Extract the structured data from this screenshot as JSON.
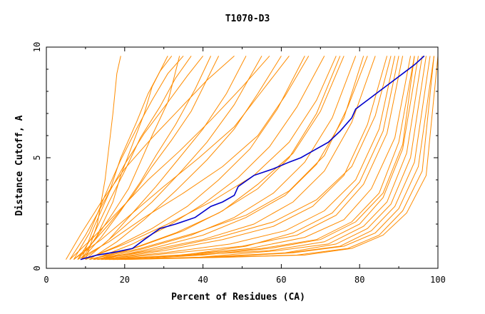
{
  "chart_data": {
    "type": "line",
    "title": "T1070-D3",
    "xlabel": "Percent of Residues (CA)",
    "ylabel": "Distance Cutoff, A",
    "xlim": [
      0,
      100
    ],
    "ylim": [
      0,
      10
    ],
    "x_ticks": [
      0,
      20,
      40,
      60,
      80,
      100
    ],
    "y_ticks": [
      0,
      5,
      10
    ],
    "grid": false,
    "legend": "none",
    "colors": {
      "highlight": "#0000cc",
      "background_models": "#ff8c00",
      "axes": "#000000"
    },
    "highlight_series": {
      "x": [
        8.7,
        13,
        18,
        22,
        25,
        29,
        33,
        38,
        42,
        45,
        48,
        49,
        53,
        58,
        62,
        65,
        68,
        72,
        75,
        78,
        79,
        82,
        85,
        88,
        91,
        94,
        96.5
      ],
      "y": [
        0.4,
        0.6,
        0.75,
        0.9,
        1.3,
        1.8,
        2.0,
        2.3,
        2.8,
        3.0,
        3.3,
        3.7,
        4.2,
        4.5,
        4.8,
        5.0,
        5.3,
        5.7,
        6.2,
        6.8,
        7.2,
        7.6,
        8.0,
        8.4,
        8.8,
        9.2,
        9.6
      ]
    },
    "model_series": [
      {
        "x": [
          10,
          13,
          15,
          16,
          17,
          18,
          19
        ],
        "y": [
          0.4,
          2.0,
          4.0,
          5.5,
          7.0,
          8.8,
          9.6
        ]
      },
      {
        "x": [
          9,
          13,
          17,
          19,
          22,
          25,
          27,
          31
        ],
        "y": [
          0.4,
          1.5,
          3.0,
          4.2,
          5.6,
          7.0,
          8.2,
          9.6
        ]
      },
      {
        "x": [
          8,
          12,
          17,
          21,
          24,
          27,
          31,
          34
        ],
        "y": [
          0.4,
          1.2,
          2.5,
          3.6,
          4.8,
          6.0,
          7.5,
          9.6
        ]
      },
      {
        "x": [
          9,
          14,
          19,
          24,
          28,
          33,
          38,
          42
        ],
        "y": [
          0.4,
          1.4,
          2.6,
          3.9,
          5.1,
          6.5,
          8.1,
          9.6
        ]
      },
      {
        "x": [
          7,
          11,
          16,
          22,
          27,
          32,
          37,
          44
        ],
        "y": [
          0.4,
          1.0,
          2.0,
          3.3,
          4.6,
          5.8,
          7.1,
          9.6
        ]
      },
      {
        "x": [
          10,
          16,
          22,
          28,
          34,
          40,
          46,
          51
        ],
        "y": [
          0.4,
          1.3,
          2.5,
          3.7,
          5.0,
          6.3,
          7.9,
          9.6
        ]
      },
      {
        "x": [
          9,
          14,
          20,
          27,
          34,
          41,
          48,
          55
        ],
        "y": [
          0.4,
          1.0,
          1.9,
          3.0,
          4.3,
          5.7,
          7.4,
          9.6
        ]
      },
      {
        "x": [
          11,
          18,
          25,
          33,
          41,
          48,
          54,
          60
        ],
        "y": [
          0.4,
          1.2,
          2.2,
          3.5,
          4.9,
          6.3,
          7.9,
          9.6
        ]
      },
      {
        "x": [
          10,
          18,
          27,
          36,
          44,
          52,
          59,
          66
        ],
        "y": [
          0.4,
          1.0,
          1.8,
          2.8,
          4.0,
          5.4,
          7.2,
          9.6
        ]
      },
      {
        "x": [
          12,
          22,
          31,
          40,
          49,
          57,
          64,
          71
        ],
        "y": [
          0.4,
          1.1,
          1.9,
          2.9,
          4.1,
          5.5,
          7.3,
          9.6
        ]
      },
      {
        "x": [
          11,
          22,
          33,
          44,
          54,
          62,
          69,
          75
        ],
        "y": [
          0.4,
          0.9,
          1.6,
          2.5,
          3.6,
          5.0,
          7.0,
          9.6
        ]
      },
      {
        "x": [
          13,
          25,
          37,
          48,
          58,
          66,
          73,
          79
        ],
        "y": [
          0.4,
          0.9,
          1.5,
          2.3,
          3.4,
          4.8,
          6.8,
          9.6
        ]
      },
      {
        "x": [
          12,
          26,
          40,
          53,
          63,
          71,
          78,
          84
        ],
        "y": [
          0.4,
          0.8,
          1.3,
          2.0,
          3.0,
          4.4,
          6.6,
          9.6
        ]
      },
      {
        "x": [
          14,
          30,
          45,
          58,
          68,
          76,
          82,
          87
        ],
        "y": [
          0.4,
          0.8,
          1.3,
          1.9,
          2.8,
          4.2,
          6.5,
          9.6
        ]
      },
      {
        "x": [
          13,
          30,
          47,
          61,
          71,
          79,
          85,
          89
        ],
        "y": [
          0.4,
          0.7,
          1.1,
          1.7,
          2.6,
          4.0,
          6.3,
          9.6
        ]
      },
      {
        "x": [
          15,
          33,
          50,
          64,
          74,
          81,
          87,
          91
        ],
        "y": [
          0.4,
          0.7,
          1.0,
          1.5,
          2.4,
          3.8,
          6.1,
          9.6
        ]
      },
      {
        "x": [
          14,
          34,
          52,
          66,
          76,
          83,
          89,
          93
        ],
        "y": [
          0.4,
          0.6,
          0.9,
          1.4,
          2.2,
          3.6,
          5.9,
          9.6
        ]
      },
      {
        "x": [
          16,
          36,
          55,
          69,
          78,
          85,
          90,
          94
        ],
        "y": [
          0.4,
          0.6,
          0.9,
          1.3,
          2.1,
          3.4,
          5.7,
          9.6
        ]
      },
      {
        "x": [
          15,
          37,
          57,
          71,
          80,
          86,
          91,
          95
        ],
        "y": [
          0.4,
          0.6,
          0.8,
          1.2,
          2.0,
          3.2,
          5.4,
          9.6
        ]
      },
      {
        "x": [
          17,
          39,
          59,
          72,
          81,
          87,
          92,
          96
        ],
        "y": [
          0.4,
          0.5,
          0.8,
          1.1,
          1.9,
          3.0,
          5.2,
          9.6
        ]
      },
      {
        "x": [
          16,
          40,
          61,
          74,
          82,
          88,
          93,
          97
        ],
        "y": [
          0.4,
          0.5,
          0.7,
          1.1,
          1.8,
          2.9,
          5.0,
          9.6
        ]
      },
      {
        "x": [
          18,
          42,
          62,
          75,
          83,
          89,
          94,
          98
        ],
        "y": [
          0.4,
          0.5,
          0.7,
          1.0,
          1.7,
          2.8,
          4.8,
          9.6
        ]
      },
      {
        "x": [
          17,
          43,
          63,
          76,
          84,
          90,
          95,
          99
        ],
        "y": [
          0.4,
          0.5,
          0.7,
          1.0,
          1.6,
          2.7,
          4.6,
          9.6
        ]
      },
      {
        "x": [
          19,
          44,
          64,
          77,
          85,
          91,
          96,
          99
        ],
        "y": [
          0.4,
          0.5,
          0.6,
          0.9,
          1.5,
          2.6,
          4.4,
          9.6
        ]
      },
      {
        "x": [
          20,
          46,
          66,
          78,
          86,
          92,
          97,
          100
        ],
        "y": [
          0.4,
          0.5,
          0.6,
          0.9,
          1.5,
          2.5,
          4.2,
          9.6
        ]
      },
      {
        "x": [
          12,
          28,
          44,
          58,
          69,
          78,
          84,
          88
        ],
        "y": [
          0.4,
          0.8,
          1.4,
          2.1,
          3.1,
          4.6,
          6.9,
          9.6
        ]
      },
      {
        "x": [
          11,
          24,
          38,
          51,
          62,
          71,
          77,
          82
        ],
        "y": [
          0.4,
          0.9,
          1.6,
          2.4,
          3.5,
          5.1,
          7.3,
          9.6
        ]
      },
      {
        "x": [
          10,
          20,
          31,
          42,
          53,
          62,
          69,
          74
        ],
        "y": [
          0.4,
          1.1,
          2.0,
          3.0,
          4.2,
          5.7,
          7.6,
          9.6
        ]
      },
      {
        "x": [
          8,
          16,
          25,
          35,
          45,
          54,
          61,
          67
        ],
        "y": [
          0.4,
          1.2,
          2.3,
          3.4,
          4.6,
          6.0,
          7.8,
          9.6
        ]
      },
      {
        "x": [
          7,
          14,
          22,
          30,
          39,
          48,
          55,
          62
        ],
        "y": [
          0.4,
          1.3,
          2.5,
          3.7,
          5.0,
          6.4,
          8.0,
          9.6
        ]
      },
      {
        "x": [
          6,
          12,
          19,
          26,
          34,
          42,
          50,
          57
        ],
        "y": [
          0.4,
          1.4,
          2.7,
          4.0,
          5.3,
          6.7,
          8.2,
          9.6
        ]
      },
      {
        "x": [
          5,
          9,
          14,
          20,
          27,
          34,
          41,
          48
        ],
        "y": [
          0.4,
          1.6,
          3.0,
          4.5,
          5.9,
          7.2,
          8.5,
          9.6
        ]
      },
      {
        "x": [
          6,
          10,
          15,
          20,
          25,
          31,
          36,
          40
        ],
        "y": [
          0.4,
          1.5,
          3.1,
          4.7,
          6.1,
          7.5,
          8.7,
          9.6
        ]
      },
      {
        "x": [
          7,
          11,
          15,
          19,
          23,
          27,
          31,
          35
        ],
        "y": [
          0.4,
          1.6,
          3.3,
          4.9,
          6.3,
          7.6,
          8.8,
          9.6
        ]
      },
      {
        "x": [
          8,
          12,
          16,
          20,
          24,
          29,
          33,
          37
        ],
        "y": [
          0.4,
          1.5,
          3.0,
          4.4,
          5.9,
          7.3,
          8.6,
          9.6
        ]
      },
      {
        "x": [
          9,
          12,
          16,
          19,
          23,
          26,
          29,
          32
        ],
        "y": [
          0.4,
          1.8,
          3.4,
          5.0,
          6.6,
          7.9,
          8.9,
          9.6
        ]
      },
      {
        "x": [
          13,
          24,
          35,
          45,
          54,
          63,
          70,
          76
        ],
        "y": [
          0.4,
          1.0,
          1.7,
          2.6,
          3.8,
          5.2,
          7.1,
          9.6
        ]
      },
      {
        "x": [
          14,
          27,
          40,
          51,
          61,
          69,
          76,
          81
        ],
        "y": [
          0.4,
          0.9,
          1.5,
          2.3,
          3.3,
          4.7,
          6.8,
          9.6
        ]
      },
      {
        "x": [
          18,
          35,
          51,
          63,
          73,
          80,
          86,
          90
        ],
        "y": [
          0.4,
          0.6,
          1.0,
          1.6,
          2.5,
          3.9,
          6.2,
          9.6
        ]
      },
      {
        "x": [
          20,
          40,
          57,
          70,
          79,
          86,
          91,
          94
        ],
        "y": [
          0.4,
          0.6,
          0.9,
          1.3,
          2.1,
          3.4,
          5.6,
          9.6
        ]
      }
    ]
  }
}
